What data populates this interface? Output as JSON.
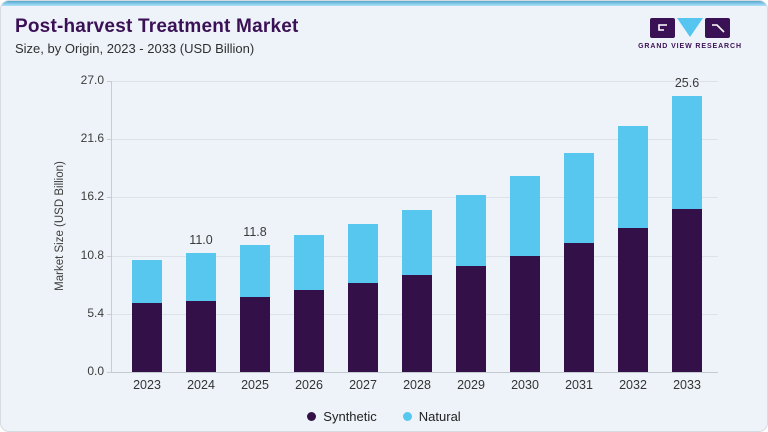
{
  "header": {
    "title": "Post-harvest Treatment Market",
    "subtitle": "Size, by Origin, 2023 - 2033 (USD Billion)"
  },
  "logo": {
    "text": "GRAND VIEW RESEARCH"
  },
  "colors": {
    "brand_purple": "#3b1156",
    "brand_blue": "#56c5ef",
    "card_background": "#eef3f9",
    "top_accent": "#85cbec"
  },
  "chart_data": {
    "type": "bar",
    "stacked": true,
    "title": "Post-harvest Treatment Market Size, by Origin, 2023 - 2033 (USD Billion)",
    "xlabel": "",
    "ylabel": "Market Size (USD Billion)",
    "categories": [
      "2023",
      "2024",
      "2025",
      "2026",
      "2027",
      "2028",
      "2029",
      "2030",
      "2031",
      "2032",
      "2033"
    ],
    "series": [
      {
        "name": "Synthetic",
        "color": "#331148",
        "values": [
          6.4,
          6.6,
          7.0,
          7.6,
          8.3,
          9.0,
          9.8,
          10.8,
          12.0,
          13.4,
          15.1
        ]
      },
      {
        "name": "Natural",
        "color": "#57c7f0",
        "values": [
          4.0,
          4.4,
          4.8,
          5.1,
          5.4,
          6.0,
          6.6,
          7.4,
          8.3,
          9.4,
          10.5
        ]
      }
    ],
    "totals": [
      10.4,
      11.0,
      11.8,
      12.7,
      13.7,
      15.0,
      16.4,
      18.2,
      20.3,
      22.8,
      25.6
    ],
    "bar_labels": [
      "",
      "11.0",
      "11.8",
      "",
      "",
      "",
      "",
      "",
      "",
      "",
      "25.6"
    ],
    "ylim": [
      0,
      27
    ],
    "yticks": [
      0.0,
      5.4,
      10.8,
      16.2,
      21.6,
      27.0
    ],
    "grid": true,
    "legend_position": "bottom"
  }
}
